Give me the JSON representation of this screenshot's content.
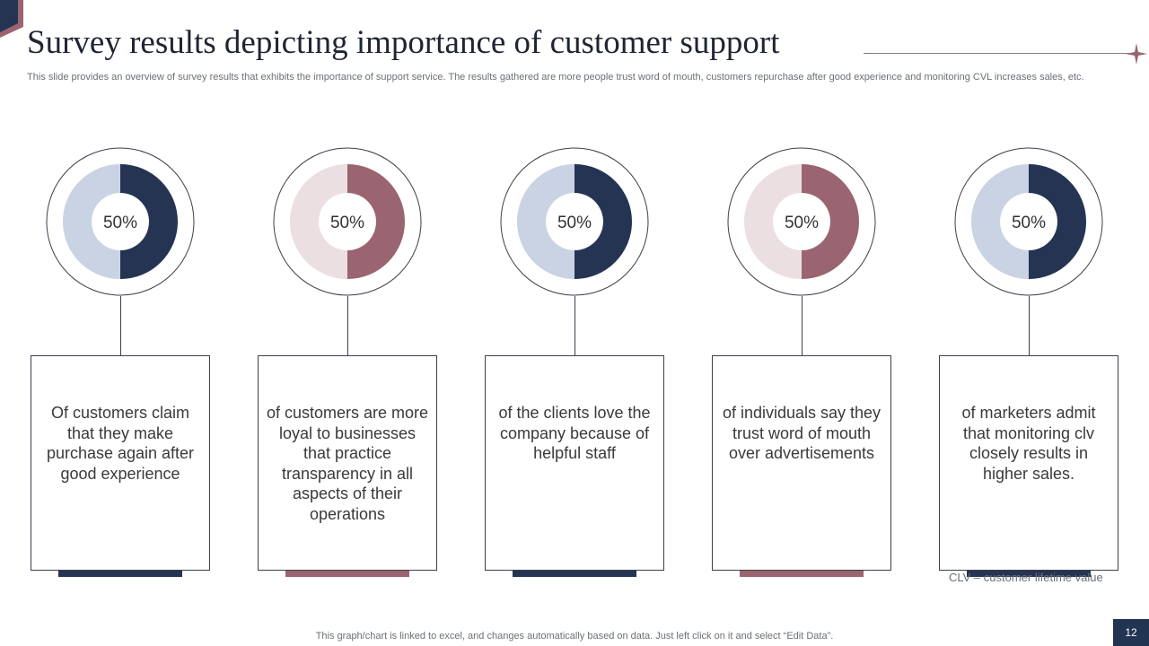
{
  "title": "Survey results depicting importance of customer support",
  "subtitle": "This slide provides an overview of survey results that exhibits the importance of support service. The results gathered are more people trust word of mouth, customers repurchase after good experience and monitoring CVL increases sales, etc.",
  "colors": {
    "navy": "#243452",
    "navy_light": "#c9d3e3",
    "rose": "#9a6470",
    "rose_light": "#ecdfe2",
    "outline": "#3a3f4c"
  },
  "chart_data": {
    "type": "pie",
    "title": "Survey results depicting importance of customer support",
    "unit": "%",
    "items": [
      {
        "value": 50,
        "label": "50%",
        "description": "Of customers claim that they make purchase again after good experience",
        "color": "navy"
      },
      {
        "value": 50,
        "label": "50%",
        "description": "of customers are more loyal to businesses that practice transparency in all aspects of their operations",
        "color": "rose"
      },
      {
        "value": 50,
        "label": "50%",
        "description": "of the clients love the company because of helpful staff",
        "color": "navy"
      },
      {
        "value": 50,
        "label": "50%",
        "description": "of individuals say they trust word of mouth over advertisements",
        "color": "rose"
      },
      {
        "value": 50,
        "label": "50%",
        "description": "of marketers admit that monitoring clv closely results in higher sales.",
        "color": "navy"
      }
    ]
  },
  "note": "CLV – customer lifetime value",
  "footer": "This graph/chart is linked to excel, and changes automatically based on data. Just left click on it and select “Edit Data”.",
  "page_number": "12"
}
